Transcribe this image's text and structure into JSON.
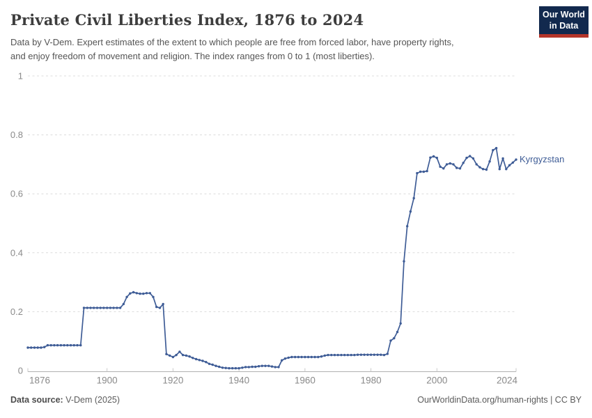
{
  "header": {
    "title": "Private Civil Liberties Index, 1876 to 2024",
    "subtitle_line1": "Data by V-Dem. Expert estimates of the extent to which people are free from forced labor, have property rights,",
    "subtitle_line2": "and enjoy freedom of movement and religion. The index ranges from 0 to 1 (most liberties).",
    "logo": {
      "line1": "Our World",
      "line2": "in Data",
      "bg": "#12294E",
      "stripe": "#B5352A"
    }
  },
  "colors": {
    "line": "#3E5C96",
    "end_label": "#3E5C96",
    "grid": "#DCDCDC",
    "axis": "#B0B0B0",
    "tick_stub": "#C8C8C8",
    "tick_text": "#8A8A8A"
  },
  "chart_data": {
    "type": "line",
    "title": "Private Civil Liberties Index, 1876 to 2024",
    "xlabel": "",
    "ylabel": "",
    "xlim": [
      1876,
      2024
    ],
    "ylim": [
      0,
      1
    ],
    "grid": "horizontal-dashed",
    "legend_position": "end-of-line",
    "xticks": [
      1876,
      1900,
      1920,
      1940,
      1960,
      1980,
      2000,
      2024
    ],
    "yticks": [
      0,
      0.2,
      0.4,
      0.6,
      0.8,
      1
    ],
    "series": [
      {
        "name": "Kyrgyzstan",
        "years": [
          1876,
          1877,
          1878,
          1879,
          1880,
          1881,
          1882,
          1883,
          1884,
          1885,
          1886,
          1887,
          1888,
          1889,
          1890,
          1891,
          1892,
          1893,
          1894,
          1895,
          1896,
          1897,
          1898,
          1899,
          1900,
          1901,
          1902,
          1903,
          1904,
          1905,
          1906,
          1907,
          1908,
          1909,
          1910,
          1911,
          1912,
          1913,
          1914,
          1915,
          1916,
          1917,
          1918,
          1919,
          1920,
          1921,
          1922,
          1923,
          1924,
          1925,
          1926,
          1927,
          1928,
          1929,
          1930,
          1931,
          1932,
          1933,
          1934,
          1935,
          1936,
          1937,
          1938,
          1939,
          1940,
          1941,
          1942,
          1943,
          1944,
          1945,
          1946,
          1947,
          1948,
          1949,
          1950,
          1951,
          1952,
          1953,
          1954,
          1955,
          1956,
          1957,
          1958,
          1959,
          1960,
          1961,
          1962,
          1963,
          1964,
          1965,
          1966,
          1967,
          1968,
          1969,
          1970,
          1971,
          1972,
          1973,
          1974,
          1975,
          1976,
          1977,
          1978,
          1979,
          1980,
          1981,
          1982,
          1983,
          1984,
          1985,
          1986,
          1987,
          1988,
          1989,
          1990,
          1991,
          1992,
          1993,
          1994,
          1995,
          1996,
          1997,
          1998,
          1999,
          2000,
          2001,
          2002,
          2003,
          2004,
          2005,
          2006,
          2007,
          2008,
          2009,
          2010,
          2011,
          2012,
          2013,
          2014,
          2015,
          2016,
          2017,
          2018,
          2019,
          2020,
          2021,
          2022,
          2023,
          2024
        ],
        "values": [
          0.078,
          0.078,
          0.078,
          0.078,
          0.078,
          0.08,
          0.086,
          0.086,
          0.086,
          0.086,
          0.086,
          0.086,
          0.086,
          0.086,
          0.086,
          0.086,
          0.086,
          0.213,
          0.213,
          0.213,
          0.213,
          0.213,
          0.213,
          0.213,
          0.213,
          0.213,
          0.213,
          0.213,
          0.213,
          0.226,
          0.25,
          0.262,
          0.266,
          0.263,
          0.261,
          0.261,
          0.263,
          0.263,
          0.25,
          0.216,
          0.213,
          0.226,
          0.056,
          0.051,
          0.046,
          0.053,
          0.064,
          0.053,
          0.051,
          0.048,
          0.043,
          0.039,
          0.036,
          0.033,
          0.029,
          0.023,
          0.02,
          0.016,
          0.013,
          0.01,
          0.009,
          0.008,
          0.008,
          0.008,
          0.008,
          0.01,
          0.012,
          0.012,
          0.013,
          0.013,
          0.015,
          0.016,
          0.016,
          0.016,
          0.014,
          0.012,
          0.012,
          0.035,
          0.041,
          0.044,
          0.046,
          0.046,
          0.046,
          0.046,
          0.046,
          0.046,
          0.046,
          0.046,
          0.046,
          0.048,
          0.051,
          0.053,
          0.053,
          0.053,
          0.053,
          0.053,
          0.053,
          0.053,
          0.053,
          0.053,
          0.054,
          0.054,
          0.054,
          0.054,
          0.054,
          0.054,
          0.054,
          0.054,
          0.053,
          0.057,
          0.102,
          0.11,
          0.131,
          0.16,
          0.371,
          0.49,
          0.54,
          0.585,
          0.67,
          0.675,
          0.675,
          0.677,
          0.723,
          0.727,
          0.722,
          0.692,
          0.686,
          0.7,
          0.703,
          0.7,
          0.688,
          0.686,
          0.705,
          0.722,
          0.728,
          0.72,
          0.7,
          0.69,
          0.684,
          0.682,
          0.71,
          0.748,
          0.755,
          0.684,
          0.72,
          0.684,
          0.697,
          0.706,
          0.716
        ]
      }
    ],
    "end_label": "Kyrgyzstan"
  },
  "footer": {
    "source_label": "Data source:",
    "source_value": " V-Dem (2025)",
    "right_url": "OurWorldinData.org/human-rights",
    "right_sep": " | ",
    "right_license": "CC BY"
  }
}
